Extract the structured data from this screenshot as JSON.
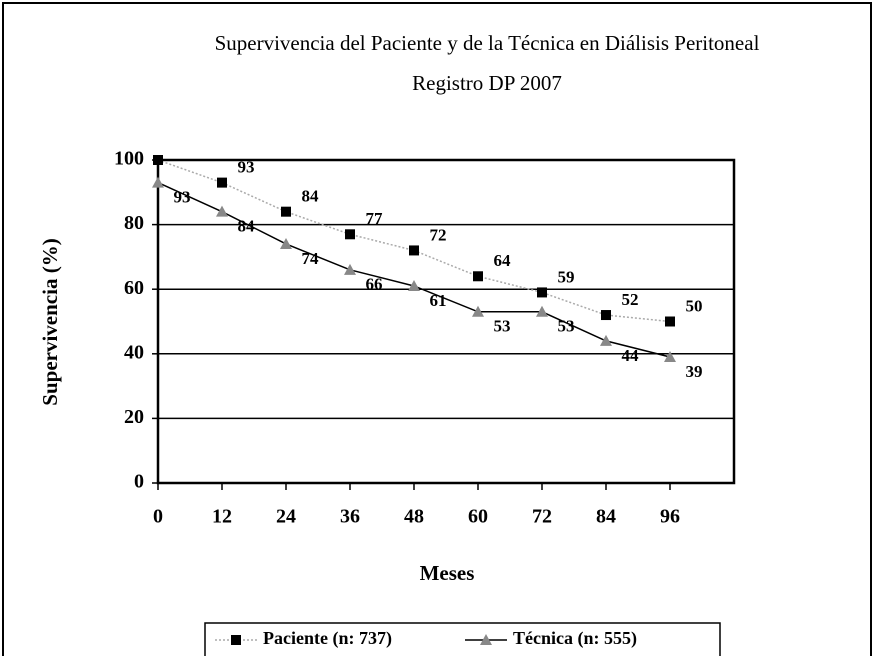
{
  "chart_data": {
    "type": "line",
    "title": "Supervivencia del Paciente y de la Técnica en Diálisis Peritoneal",
    "subtitle": "Registro DP 2007",
    "x_label": "Meses",
    "y_label": "Supervivencia (%)",
    "x": [
      0,
      12,
      24,
      36,
      48,
      60,
      72,
      84,
      96
    ],
    "xlim": [
      0,
      108
    ],
    "xticks": [
      0,
      12,
      24,
      36,
      48,
      60,
      72,
      84,
      96
    ],
    "ylim": [
      0,
      100
    ],
    "yticks": [
      0,
      20,
      40,
      60,
      80,
      100
    ],
    "grid": true,
    "legend": "bottom",
    "series": [
      {
        "name": "Paciente (n: 737)",
        "color": "#aaaaaa",
        "marker": "square",
        "marker_color": "#000000",
        "values": [
          100,
          93,
          84,
          77,
          72,
          64,
          59,
          52,
          50
        ],
        "value_labels": [
          null,
          "93",
          "84",
          "77",
          "72",
          "64",
          "59",
          "52",
          "50"
        ]
      },
      {
        "name": "Técnica (n: 555)",
        "color": "#000000",
        "marker": "triangle",
        "marker_color": "#888888",
        "values": [
          93,
          84,
          74,
          66,
          61,
          53,
          53,
          44,
          39
        ],
        "value_labels": [
          "93",
          "84",
          "74",
          "66",
          "61",
          "53",
          "53",
          "44",
          "39"
        ]
      }
    ]
  }
}
